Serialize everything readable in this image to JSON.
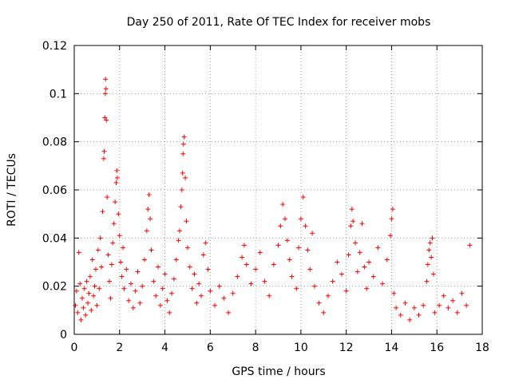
{
  "chart_data": {
    "type": "scatter",
    "title": "Day 250 of 2011, Rate Of TEC Index for receiver mobs",
    "xlabel": "GPS time / hours",
    "ylabel": "ROTI / TECUs",
    "xlim": [
      0,
      18
    ],
    "ylim": [
      0,
      0.12
    ],
    "grid": true,
    "marker": "+",
    "color": "#ff0000",
    "x_ticks": [
      0,
      2,
      4,
      6,
      8,
      10,
      12,
      14,
      16,
      18
    ],
    "x_tick_labels": [
      "0",
      "2",
      "4",
      "6",
      "8",
      "10",
      "12",
      "14",
      "16",
      "18"
    ],
    "y_ticks": [
      0,
      0.02,
      0.04,
      0.06,
      0.08,
      0.1,
      0.12
    ],
    "y_tick_labels": [
      "0",
      "0.02",
      "0.04",
      "0.06",
      "0.08",
      "0.1",
      "0.12"
    ],
    "series": [
      {
        "name": "mobs",
        "points": [
          [
            0.05,
            0.012
          ],
          [
            0.1,
            0.018
          ],
          [
            0.15,
            0.009
          ],
          [
            0.2,
            0.034
          ],
          [
            0.25,
            0.021
          ],
          [
            0.3,
            0.006
          ],
          [
            0.35,
            0.015
          ],
          [
            0.4,
            0.011
          ],
          [
            0.45,
            0.019
          ],
          [
            0.5,
            0.008
          ],
          [
            0.55,
            0.022
          ],
          [
            0.6,
            0.013
          ],
          [
            0.65,
            0.017
          ],
          [
            0.7,
            0.024
          ],
          [
            0.75,
            0.01
          ],
          [
            0.8,
            0.031
          ],
          [
            0.85,
            0.016
          ],
          [
            0.9,
            0.02
          ],
          [
            0.95,
            0.027
          ],
          [
            1.0,
            0.012
          ],
          [
            1.05,
            0.035
          ],
          [
            1.1,
            0.019
          ],
          [
            1.15,
            0.04
          ],
          [
            1.2,
            0.028
          ],
          [
            1.25,
            0.051
          ],
          [
            1.3,
            0.073
          ],
          [
            1.32,
            0.076
          ],
          [
            1.35,
            0.09
          ],
          [
            1.37,
            0.1
          ],
          [
            1.38,
            0.106
          ],
          [
            1.4,
            0.102
          ],
          [
            1.42,
            0.089
          ],
          [
            1.45,
            0.057
          ],
          [
            1.5,
            0.033
          ],
          [
            1.55,
            0.022
          ],
          [
            1.6,
            0.015
          ],
          [
            1.65,
            0.029
          ],
          [
            1.7,
            0.038
          ],
          [
            1.75,
            0.046
          ],
          [
            1.8,
            0.055
          ],
          [
            1.85,
            0.063
          ],
          [
            1.88,
            0.068
          ],
          [
            1.9,
            0.065
          ],
          [
            1.95,
            0.05
          ],
          [
            2.0,
            0.041
          ],
          [
            2.05,
            0.03
          ],
          [
            2.1,
            0.024
          ],
          [
            2.15,
            0.036
          ],
          [
            2.2,
            0.019
          ],
          [
            2.3,
            0.027
          ],
          [
            2.4,
            0.014
          ],
          [
            2.5,
            0.021
          ],
          [
            2.6,
            0.011
          ],
          [
            2.7,
            0.018
          ],
          [
            2.8,
            0.026
          ],
          [
            2.9,
            0.013
          ],
          [
            3.0,
            0.02
          ],
          [
            3.1,
            0.031
          ],
          [
            3.2,
            0.043
          ],
          [
            3.25,
            0.052
          ],
          [
            3.3,
            0.058
          ],
          [
            3.35,
            0.048
          ],
          [
            3.4,
            0.035
          ],
          [
            3.5,
            0.022
          ],
          [
            3.6,
            0.016
          ],
          [
            3.7,
            0.028
          ],
          [
            3.8,
            0.012
          ],
          [
            3.9,
            0.019
          ],
          [
            4.0,
            0.025
          ],
          [
            4.1,
            0.014
          ],
          [
            4.2,
            0.009
          ],
          [
            4.3,
            0.017
          ],
          [
            4.4,
            0.023
          ],
          [
            4.5,
            0.031
          ],
          [
            4.6,
            0.039
          ],
          [
            4.65,
            0.043
          ],
          [
            4.7,
            0.053
          ],
          [
            4.75,
            0.06
          ],
          [
            4.78,
            0.067
          ],
          [
            4.8,
            0.075
          ],
          [
            4.82,
            0.079
          ],
          [
            4.85,
            0.082
          ],
          [
            4.9,
            0.065
          ],
          [
            4.95,
            0.047
          ],
          [
            5.0,
            0.036
          ],
          [
            5.1,
            0.028
          ],
          [
            5.2,
            0.019
          ],
          [
            5.3,
            0.025
          ],
          [
            5.4,
            0.013
          ],
          [
            5.5,
            0.021
          ],
          [
            5.6,
            0.016
          ],
          [
            5.7,
            0.033
          ],
          [
            5.8,
            0.038
          ],
          [
            5.9,
            0.027
          ],
          [
            6.0,
            0.018
          ],
          [
            6.2,
            0.012
          ],
          [
            6.4,
            0.02
          ],
          [
            6.6,
            0.015
          ],
          [
            6.8,
            0.009
          ],
          [
            7.0,
            0.017
          ],
          [
            7.2,
            0.024
          ],
          [
            7.4,
            0.032
          ],
          [
            7.5,
            0.037
          ],
          [
            7.6,
            0.029
          ],
          [
            7.8,
            0.021
          ],
          [
            8.0,
            0.027
          ],
          [
            8.2,
            0.034
          ],
          [
            8.4,
            0.022
          ],
          [
            8.6,
            0.016
          ],
          [
            8.8,
            0.029
          ],
          [
            9.0,
            0.037
          ],
          [
            9.1,
            0.045
          ],
          [
            9.2,
            0.054
          ],
          [
            9.3,
            0.048
          ],
          [
            9.4,
            0.039
          ],
          [
            9.5,
            0.031
          ],
          [
            9.6,
            0.024
          ],
          [
            9.8,
            0.019
          ],
          [
            9.9,
            0.036
          ],
          [
            10.0,
            0.048
          ],
          [
            10.1,
            0.057
          ],
          [
            10.2,
            0.045
          ],
          [
            10.3,
            0.035
          ],
          [
            10.4,
            0.027
          ],
          [
            10.5,
            0.042
          ],
          [
            10.6,
            0.02
          ],
          [
            10.8,
            0.013
          ],
          [
            11.0,
            0.009
          ],
          [
            11.2,
            0.016
          ],
          [
            11.4,
            0.022
          ],
          [
            11.6,
            0.03
          ],
          [
            11.8,
            0.025
          ],
          [
            12.0,
            0.018
          ],
          [
            12.1,
            0.033
          ],
          [
            12.2,
            0.045
          ],
          [
            12.25,
            0.052
          ],
          [
            12.3,
            0.047
          ],
          [
            12.4,
            0.038
          ],
          [
            12.5,
            0.026
          ],
          [
            12.6,
            0.034
          ],
          [
            12.7,
            0.046
          ],
          [
            12.8,
            0.028
          ],
          [
            12.9,
            0.019
          ],
          [
            13.0,
            0.03
          ],
          [
            13.2,
            0.024
          ],
          [
            13.4,
            0.036
          ],
          [
            13.6,
            0.021
          ],
          [
            13.8,
            0.031
          ],
          [
            13.95,
            0.041
          ],
          [
            14.0,
            0.048
          ],
          [
            14.05,
            0.052
          ],
          [
            14.1,
            0.017
          ],
          [
            14.2,
            0.011
          ],
          [
            14.4,
            0.008
          ],
          [
            14.6,
            0.013
          ],
          [
            14.8,
            0.006
          ],
          [
            15.0,
            0.011
          ],
          [
            15.2,
            0.008
          ],
          [
            15.4,
            0.012
          ],
          [
            15.55,
            0.022
          ],
          [
            15.6,
            0.029
          ],
          [
            15.65,
            0.035
          ],
          [
            15.7,
            0.038
          ],
          [
            15.75,
            0.032
          ],
          [
            15.8,
            0.04
          ],
          [
            15.85,
            0.025
          ],
          [
            15.9,
            0.009
          ],
          [
            16.1,
            0.012
          ],
          [
            16.3,
            0.016
          ],
          [
            16.5,
            0.011
          ],
          [
            16.7,
            0.014
          ],
          [
            16.9,
            0.009
          ],
          [
            17.1,
            0.017
          ],
          [
            17.3,
            0.012
          ],
          [
            17.45,
            0.037
          ]
        ]
      }
    ]
  }
}
